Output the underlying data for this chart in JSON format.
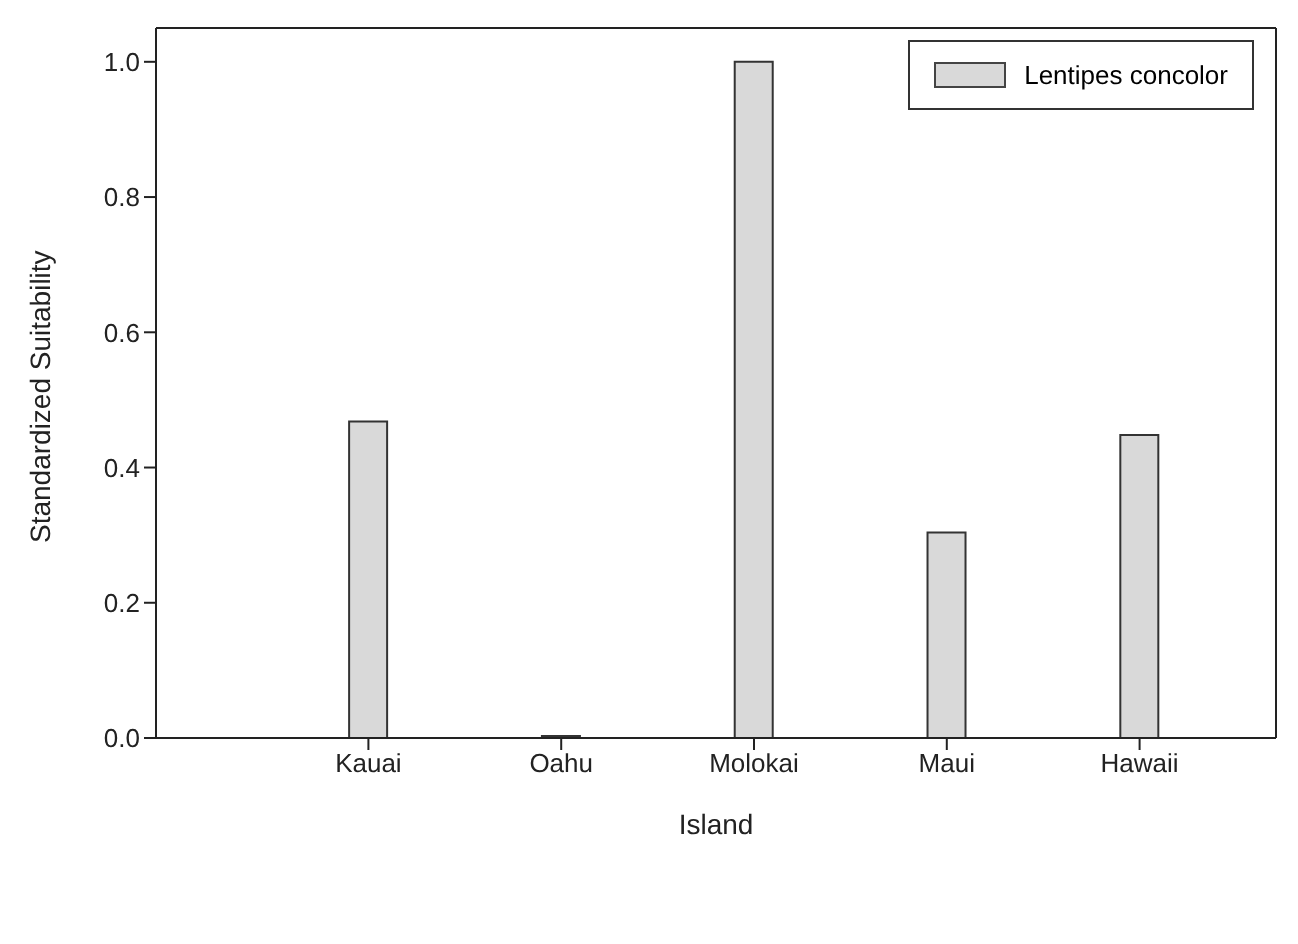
{
  "chart_data": {
    "type": "bar",
    "xlabel": "Island",
    "ylabel": "Standardized Suitability",
    "categories": [
      "Kauai",
      "Oahu",
      "Molokai",
      "Maui",
      "Hawaii"
    ],
    "series": [
      {
        "name": "Lentipes concolor",
        "color": "#d9d9d9",
        "values": [
          0.468,
          0.003,
          1.0,
          0.304,
          0.448
        ]
      }
    ],
    "ylim": [
      0,
      1.05
    ],
    "yticks": [
      {
        "value": 0,
        "label": "0.0"
      },
      {
        "value": 0.2,
        "label": "0.2"
      },
      {
        "value": 0.4,
        "label": "0.4"
      },
      {
        "value": 0.6,
        "label": "0.6"
      },
      {
        "value": 0.8,
        "label": "0.8"
      },
      {
        "value": 1,
        "label": "1.0"
      }
    ],
    "grid": false,
    "legend": "top right"
  }
}
